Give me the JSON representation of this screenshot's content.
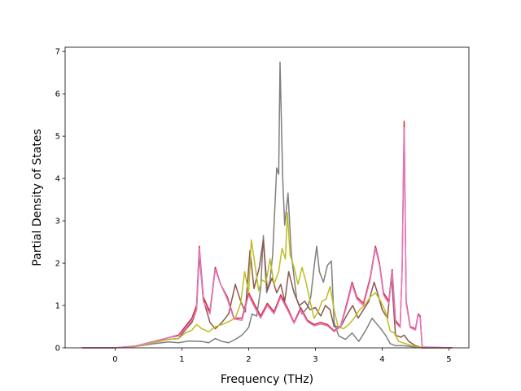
{
  "chart_data": {
    "type": "line",
    "title": "",
    "xlabel": "Frequency (THz)",
    "ylabel": "Partial Density of States",
    "xlim": [
      -0.75,
      5.3
    ],
    "ylim": [
      0,
      7.1
    ],
    "xticks": [
      0,
      1,
      2,
      3,
      4,
      5
    ],
    "yticks": [
      0,
      1,
      2,
      3,
      4,
      5,
      6,
      7
    ],
    "grid": false,
    "legend": "none",
    "series": [
      {
        "color": "#d62728",
        "points": [
          [
            -0.5,
            0
          ],
          [
            0,
            0
          ],
          [
            0.3,
            0.04
          ],
          [
            0.6,
            0.16
          ],
          [
            0.8,
            0.24
          ],
          [
            0.95,
            0.3
          ],
          [
            1.05,
            0.5
          ],
          [
            1.15,
            0.7
          ],
          [
            1.22,
            1.0
          ],
          [
            1.26,
            2.4
          ],
          [
            1.32,
            1.2
          ],
          [
            1.42,
            0.85
          ],
          [
            1.5,
            1.9
          ],
          [
            1.58,
            1.5
          ],
          [
            1.68,
            1.2
          ],
          [
            1.78,
            0.7
          ],
          [
            1.9,
            0.7
          ],
          [
            2.0,
            1.3
          ],
          [
            2.08,
            1.05
          ],
          [
            2.18,
            0.75
          ],
          [
            2.28,
            1.05
          ],
          [
            2.38,
            0.85
          ],
          [
            2.48,
            1.25
          ],
          [
            2.58,
            0.95
          ],
          [
            2.68,
            0.6
          ],
          [
            2.78,
            0.95
          ],
          [
            2.88,
            0.65
          ],
          [
            2.98,
            0.55
          ],
          [
            3.08,
            0.6
          ],
          [
            3.18,
            0.55
          ],
          [
            3.28,
            0.4
          ],
          [
            3.38,
            0.52
          ],
          [
            3.48,
            1.1
          ],
          [
            3.55,
            1.55
          ],
          [
            3.62,
            1.2
          ],
          [
            3.72,
            1.05
          ],
          [
            3.82,
            1.65
          ],
          [
            3.9,
            2.4
          ],
          [
            3.96,
            2.0
          ],
          [
            4.02,
            1.3
          ],
          [
            4.1,
            1.1
          ],
          [
            4.15,
            1.85
          ],
          [
            4.2,
            0.65
          ],
          [
            4.27,
            0.5
          ],
          [
            4.3,
            1.9
          ],
          [
            4.33,
            5.35
          ],
          [
            4.36,
            1.1
          ],
          [
            4.42,
            0.5
          ],
          [
            4.5,
            0.45
          ],
          [
            4.54,
            0.8
          ],
          [
            4.57,
            0.75
          ],
          [
            4.6,
            0.02
          ],
          [
            5.05,
            0
          ]
        ]
      },
      {
        "color": "#7f7f7f",
        "points": [
          [
            -0.5,
            0
          ],
          [
            0,
            0
          ],
          [
            0.3,
            0.03
          ],
          [
            0.6,
            0.1
          ],
          [
            0.8,
            0.14
          ],
          [
            0.95,
            0.12
          ],
          [
            1.1,
            0.16
          ],
          [
            1.3,
            0.15
          ],
          [
            1.4,
            0.12
          ],
          [
            1.5,
            0.22
          ],
          [
            1.6,
            0.15
          ],
          [
            1.7,
            0.12
          ],
          [
            1.8,
            0.2
          ],
          [
            1.9,
            0.3
          ],
          [
            2.0,
            0.48
          ],
          [
            2.05,
            0.8
          ],
          [
            2.12,
            0.75
          ],
          [
            2.18,
            1.4
          ],
          [
            2.22,
            2.65
          ],
          [
            2.27,
            1.3
          ],
          [
            2.32,
            1.6
          ],
          [
            2.36,
            2.2
          ],
          [
            2.42,
            4.25
          ],
          [
            2.45,
            4.1
          ],
          [
            2.47,
            6.75
          ],
          [
            2.51,
            4.0
          ],
          [
            2.54,
            2.9
          ],
          [
            2.59,
            3.65
          ],
          [
            2.64,
            2.2
          ],
          [
            2.72,
            1.15
          ],
          [
            2.8,
            0.8
          ],
          [
            2.88,
            0.95
          ],
          [
            2.93,
            1.2
          ],
          [
            2.98,
            1.9
          ],
          [
            3.02,
            2.4
          ],
          [
            3.06,
            1.8
          ],
          [
            3.12,
            1.55
          ],
          [
            3.18,
            1.95
          ],
          [
            3.24,
            2.05
          ],
          [
            3.28,
            0.6
          ],
          [
            3.35,
            0.28
          ],
          [
            3.45,
            0.2
          ],
          [
            3.55,
            0.35
          ],
          [
            3.65,
            0.15
          ],
          [
            3.75,
            0.4
          ],
          [
            3.85,
            0.7
          ],
          [
            3.9,
            0.6
          ],
          [
            3.98,
            0.45
          ],
          [
            4.05,
            0.3
          ],
          [
            4.12,
            0.1
          ],
          [
            4.2,
            0.05
          ],
          [
            4.32,
            0.05
          ],
          [
            4.5,
            0.02
          ],
          [
            4.6,
            0
          ],
          [
            5.05,
            0
          ]
        ]
      },
      {
        "color": "#8c564b",
        "points": [
          [
            -0.5,
            0
          ],
          [
            0,
            0
          ],
          [
            0.3,
            0.04
          ],
          [
            0.6,
            0.14
          ],
          [
            0.8,
            0.2
          ],
          [
            0.95,
            0.22
          ],
          [
            1.05,
            0.42
          ],
          [
            1.15,
            0.6
          ],
          [
            1.22,
            0.9
          ],
          [
            1.26,
            2.2
          ],
          [
            1.32,
            1.15
          ],
          [
            1.42,
            0.6
          ],
          [
            1.5,
            0.45
          ],
          [
            1.6,
            0.6
          ],
          [
            1.7,
            0.8
          ],
          [
            1.8,
            1.5
          ],
          [
            1.88,
            1.1
          ],
          [
            1.95,
            0.85
          ],
          [
            2.02,
            2.3
          ],
          [
            2.08,
            1.4
          ],
          [
            2.16,
            1.9
          ],
          [
            2.22,
            2.55
          ],
          [
            2.28,
            1.35
          ],
          [
            2.35,
            1.65
          ],
          [
            2.42,
            1.3
          ],
          [
            2.48,
            1.5
          ],
          [
            2.54,
            1.1
          ],
          [
            2.6,
            1.8
          ],
          [
            2.68,
            1.3
          ],
          [
            2.76,
            1.0
          ],
          [
            2.84,
            1.1
          ],
          [
            2.92,
            0.9
          ],
          [
            3.0,
            0.95
          ],
          [
            3.08,
            0.75
          ],
          [
            3.15,
            1.0
          ],
          [
            3.22,
            0.9
          ],
          [
            3.28,
            0.5
          ],
          [
            3.38,
            0.5
          ],
          [
            3.48,
            0.8
          ],
          [
            3.56,
            1.0
          ],
          [
            3.64,
            0.7
          ],
          [
            3.72,
            0.9
          ],
          [
            3.8,
            1.1
          ],
          [
            3.88,
            1.55
          ],
          [
            3.94,
            1.25
          ],
          [
            4.0,
            0.9
          ],
          [
            4.08,
            0.7
          ],
          [
            4.14,
            1.7
          ],
          [
            4.2,
            0.3
          ],
          [
            4.28,
            0.25
          ],
          [
            4.33,
            0.3
          ],
          [
            4.4,
            0.15
          ],
          [
            4.5,
            0.05
          ],
          [
            4.6,
            0
          ],
          [
            5.05,
            0
          ]
        ]
      },
      {
        "color": "#bcbd22",
        "points": [
          [
            -0.5,
            0
          ],
          [
            0,
            0
          ],
          [
            0.3,
            0.03
          ],
          [
            0.6,
            0.13
          ],
          [
            0.8,
            0.2
          ],
          [
            0.95,
            0.22
          ],
          [
            1.05,
            0.35
          ],
          [
            1.15,
            0.42
          ],
          [
            1.22,
            0.55
          ],
          [
            1.3,
            0.45
          ],
          [
            1.4,
            0.38
          ],
          [
            1.5,
            0.5
          ],
          [
            1.6,
            0.55
          ],
          [
            1.7,
            0.62
          ],
          [
            1.8,
            0.7
          ],
          [
            1.88,
            1.05
          ],
          [
            1.94,
            1.8
          ],
          [
            2.0,
            1.3
          ],
          [
            2.04,
            2.55
          ],
          [
            2.1,
            1.9
          ],
          [
            2.15,
            1.35
          ],
          [
            2.2,
            1.6
          ],
          [
            2.26,
            1.55
          ],
          [
            2.32,
            2.1
          ],
          [
            2.38,
            1.5
          ],
          [
            2.45,
            1.8
          ],
          [
            2.5,
            2.35
          ],
          [
            2.55,
            2.1
          ],
          [
            2.58,
            3.2
          ],
          [
            2.62,
            2.2
          ],
          [
            2.68,
            1.9
          ],
          [
            2.74,
            1.5
          ],
          [
            2.8,
            1.9
          ],
          [
            2.86,
            1.55
          ],
          [
            2.92,
            1.1
          ],
          [
            2.98,
            0.7
          ],
          [
            3.04,
            0.85
          ],
          [
            3.1,
            1.1
          ],
          [
            3.16,
            1.15
          ],
          [
            3.22,
            1.45
          ],
          [
            3.28,
            0.9
          ],
          [
            3.34,
            0.5
          ],
          [
            3.42,
            0.45
          ],
          [
            3.5,
            0.55
          ],
          [
            3.58,
            0.7
          ],
          [
            3.66,
            0.9
          ],
          [
            3.74,
            1.0
          ],
          [
            3.82,
            1.2
          ],
          [
            3.9,
            1.3
          ],
          [
            3.98,
            1.1
          ],
          [
            4.05,
            0.85
          ],
          [
            4.12,
            0.4
          ],
          [
            4.18,
            0.35
          ],
          [
            4.25,
            0.15
          ],
          [
            4.35,
            0.1
          ],
          [
            4.45,
            0.05
          ],
          [
            4.6,
            0
          ],
          [
            5.05,
            0
          ]
        ]
      },
      {
        "color": "#e377c2",
        "points": [
          [
            -0.5,
            0
          ],
          [
            0,
            0
          ],
          [
            0.3,
            0.04
          ],
          [
            0.6,
            0.16
          ],
          [
            0.8,
            0.24
          ],
          [
            0.95,
            0.28
          ],
          [
            1.05,
            0.45
          ],
          [
            1.15,
            0.65
          ],
          [
            1.22,
            0.9
          ],
          [
            1.26,
            2.35
          ],
          [
            1.32,
            1.1
          ],
          [
            1.42,
            0.8
          ],
          [
            1.5,
            1.85
          ],
          [
            1.58,
            1.5
          ],
          [
            1.68,
            1.15
          ],
          [
            1.78,
            0.68
          ],
          [
            1.9,
            0.65
          ],
          [
            2.0,
            1.25
          ],
          [
            2.08,
            0.98
          ],
          [
            2.18,
            0.7
          ],
          [
            2.28,
            1.0
          ],
          [
            2.38,
            0.8
          ],
          [
            2.48,
            1.2
          ],
          [
            2.58,
            0.9
          ],
          [
            2.68,
            0.58
          ],
          [
            2.78,
            0.9
          ],
          [
            2.88,
            0.62
          ],
          [
            2.98,
            0.52
          ],
          [
            3.08,
            0.56
          ],
          [
            3.18,
            0.52
          ],
          [
            3.28,
            0.38
          ],
          [
            3.38,
            0.5
          ],
          [
            3.48,
            1.05
          ],
          [
            3.55,
            1.5
          ],
          [
            3.62,
            1.15
          ],
          [
            3.72,
            1.0
          ],
          [
            3.82,
            1.6
          ],
          [
            3.9,
            2.35
          ],
          [
            3.96,
            1.95
          ],
          [
            4.02,
            1.25
          ],
          [
            4.1,
            1.05
          ],
          [
            4.15,
            1.8
          ],
          [
            4.2,
            0.6
          ],
          [
            4.27,
            0.48
          ],
          [
            4.3,
            1.85
          ],
          [
            4.33,
            5.2
          ],
          [
            4.36,
            1.05
          ],
          [
            4.42,
            0.48
          ],
          [
            4.5,
            0.42
          ],
          [
            4.54,
            0.78
          ],
          [
            4.57,
            0.72
          ],
          [
            4.6,
            0.02
          ],
          [
            5.05,
            0
          ]
        ]
      }
    ]
  }
}
